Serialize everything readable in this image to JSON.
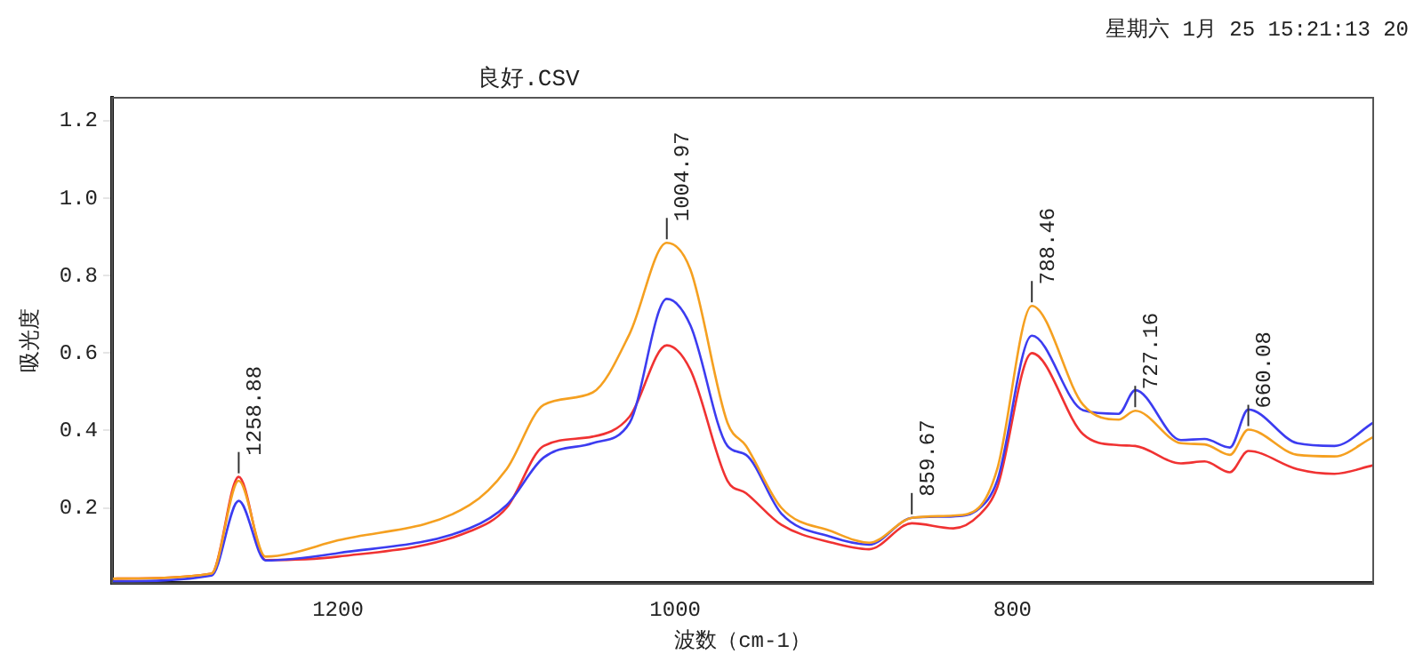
{
  "chart_data": {
    "type": "line",
    "title": "良好.CSV",
    "xlabel": "波数（cm-1）",
    "ylabel": "吸光度",
    "x": [
      1334,
      1275,
      1258.88,
      1243,
      1200,
      1122,
      1100,
      1078,
      1049,
      1027,
      1004.97,
      991,
      969,
      958,
      937,
      907,
      885,
      859.67,
      835,
      820,
      809,
      788.46,
      758,
      737,
      727.16,
      700,
      686,
      671,
      660.08,
      631,
      609,
      586
    ],
    "series": [
      {
        "color": "#f5a020",
        "values": [
          0.017,
          0.03,
          0.27,
          0.074,
          0.116,
          0.207,
          0.3,
          0.466,
          0.498,
          0.65,
          0.885,
          0.816,
          0.42,
          0.36,
          0.2,
          0.139,
          0.11,
          0.174,
          0.18,
          0.2,
          0.3,
          0.722,
          0.466,
          0.428,
          0.451,
          0.367,
          0.364,
          0.337,
          0.402,
          0.337,
          0.333,
          0.383
        ]
      },
      {
        "color": "#3c3cf0",
        "values": [
          0.01,
          0.025,
          0.218,
          0.064,
          0.083,
          0.147,
          0.207,
          0.33,
          0.367,
          0.42,
          0.74,
          0.672,
          0.36,
          0.337,
          0.185,
          0.124,
          0.105,
          0.174,
          0.178,
          0.197,
          0.27,
          0.645,
          0.452,
          0.443,
          0.504,
          0.375,
          0.378,
          0.356,
          0.454,
          0.367,
          0.36,
          0.42
        ]
      },
      {
        "color": "#f03232",
        "values": [
          0.017,
          0.03,
          0.28,
          0.065,
          0.074,
          0.139,
          0.2,
          0.36,
          0.384,
          0.436,
          0.62,
          0.557,
          0.27,
          0.238,
          0.156,
          0.11,
          0.093,
          0.16,
          0.147,
          0.18,
          0.253,
          0.6,
          0.39,
          0.362,
          0.36,
          0.315,
          0.32,
          0.292,
          0.347,
          0.3,
          0.288,
          0.31
        ]
      }
    ],
    "xlim": [
      1334,
      586
    ],
    "xticks": [
      1200,
      1000,
      800
    ],
    "ylim": [
      0.005,
      1.26
    ],
    "yticks": [
      {
        "value": 0.2,
        "label": "0.2"
      },
      {
        "value": 0.4,
        "label": "0.4"
      },
      {
        "value": 0.6,
        "label": "0.6"
      },
      {
        "value": 0.8,
        "label": "0.8"
      },
      {
        "value": 1,
        "label": "1.0"
      },
      {
        "value": 1.2,
        "label": "1.2"
      }
    ],
    "annotations": [
      "星期六 1月 25 15:21:13 20",
      {
        "text": "1258.88",
        "x": 1258.88,
        "y": 0.28
      },
      {
        "text": "1004.97",
        "x": 1004.97,
        "y": 0.885
      },
      {
        "text": "859.67",
        "x": 859.67,
        "y": 0.174
      },
      {
        "text": "788.46",
        "x": 788.46,
        "y": 0.722
      },
      {
        "text": "727.16",
        "x": 727.16,
        "y": 0.451
      },
      {
        "text": "660.08",
        "x": 660.08,
        "y": 0.402
      }
    ],
    "grid": false,
    "legend": false,
    "marker": "none",
    "line_style": "solid"
  }
}
